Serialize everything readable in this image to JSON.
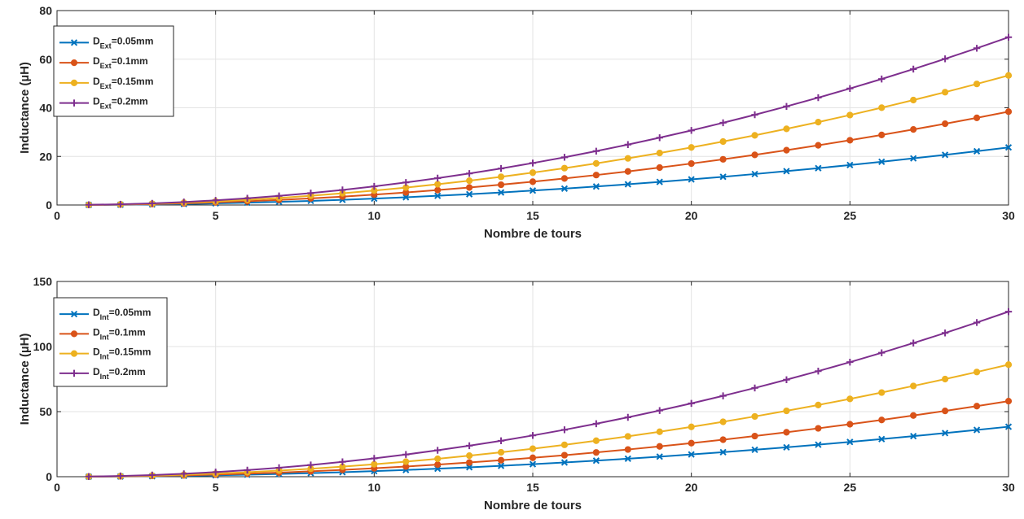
{
  "chart_data": [
    {
      "type": "line",
      "xlabel": "Nombre de tours",
      "ylabel": "Inductance (µH)",
      "xlim": [
        0,
        30
      ],
      "ylim": [
        0,
        80
      ],
      "xticks": [
        "0",
        "5",
        "10",
        "15",
        "20",
        "25",
        "30"
      ],
      "yticks": [
        "0",
        "20",
        "40",
        "60",
        "80"
      ],
      "grid": true,
      "legend_position": "top-left",
      "x": [
        1,
        2,
        3,
        4,
        5,
        6,
        7,
        8,
        9,
        10,
        11,
        12,
        13,
        14,
        15,
        16,
        17,
        18,
        19,
        20,
        21,
        22,
        23,
        24,
        25,
        26,
        27,
        28,
        29,
        30
      ],
      "series": [
        {
          "name": "D",
          "subscript": "Ext",
          "suffix": "=0.05mm",
          "color": "#0072BD",
          "marker": "x",
          "values": [
            0.03,
            0.1,
            0.24,
            0.42,
            0.66,
            0.95,
            1.29,
            1.69,
            2.13,
            2.63,
            3.19,
            3.79,
            4.45,
            5.16,
            5.93,
            6.74,
            7.61,
            8.53,
            9.51,
            10.53,
            11.61,
            12.74,
            13.93,
            15.16,
            16.45,
            17.79,
            19.19,
            20.64,
            22.13,
            23.7
          ]
        },
        {
          "name": "D",
          "subscript": "Ext",
          "suffix": "=0.1mm",
          "color": "#D95319",
          "marker": "circle",
          "values": [
            0.04,
            0.17,
            0.38,
            0.68,
            1.07,
            1.53,
            2.09,
            2.73,
            3.45,
            4.26,
            5.16,
            6.14,
            7.2,
            8.35,
            9.59,
            10.91,
            12.32,
            13.81,
            15.39,
            17.05,
            18.8,
            20.63,
            22.55,
            24.55,
            26.64,
            28.82,
            31.08,
            33.42,
            35.85,
            38.4
          ]
        },
        {
          "name": "D",
          "subscript": "Ext",
          "suffix": "=0.15mm",
          "color": "#EDB120",
          "marker": "circle",
          "values": [
            0.06,
            0.24,
            0.53,
            0.95,
            1.48,
            2.13,
            2.9,
            3.79,
            4.8,
            5.93,
            7.17,
            8.53,
            10.01,
            11.61,
            13.33,
            15.16,
            17.12,
            19.19,
            21.38,
            23.69,
            26.12,
            28.66,
            31.33,
            34.11,
            37.01,
            40.03,
            43.18,
            46.43,
            49.81,
            53.3
          ]
        },
        {
          "name": "D",
          "subscript": "Ext",
          "suffix": "=0.2mm",
          "color": "#7E2F8E",
          "marker": "plus",
          "values": [
            0.08,
            0.31,
            0.69,
            1.23,
            1.92,
            2.76,
            3.76,
            4.91,
            6.21,
            7.67,
            9.28,
            11.05,
            12.96,
            15.03,
            17.26,
            19.64,
            22.17,
            24.85,
            27.69,
            30.68,
            33.83,
            37.12,
            40.57,
            44.17,
            47.93,
            51.84,
            55.91,
            60.13,
            64.5,
            69.03
          ]
        }
      ]
    },
    {
      "type": "line",
      "xlabel": "Nombre de tours",
      "ylabel": "Inductance (µH)",
      "xlim": [
        0,
        30
      ],
      "ylim": [
        0,
        150
      ],
      "xticks": [
        "0",
        "5",
        "10",
        "15",
        "20",
        "25",
        "30"
      ],
      "yticks": [
        "0",
        "50",
        "100",
        "150"
      ],
      "grid": true,
      "legend_position": "top-left",
      "x": [
        1,
        2,
        3,
        4,
        5,
        6,
        7,
        8,
        9,
        10,
        11,
        12,
        13,
        14,
        15,
        16,
        17,
        18,
        19,
        20,
        21,
        22,
        23,
        24,
        25,
        26,
        27,
        28,
        29,
        30
      ],
      "series": [
        {
          "name": "D",
          "subscript": "Int",
          "suffix": "=0.05mm",
          "color": "#0072BD",
          "marker": "x",
          "values": [
            0.04,
            0.17,
            0.38,
            0.68,
            1.07,
            1.54,
            2.09,
            2.73,
            3.46,
            4.27,
            5.17,
            6.15,
            7.22,
            8.37,
            9.61,
            10.93,
            12.34,
            13.84,
            15.42,
            17.09,
            18.84,
            20.68,
            22.6,
            24.61,
            26.7,
            28.88,
            31.15,
            33.5,
            35.94,
            38.4
          ]
        },
        {
          "name": "D",
          "subscript": "Int",
          "suffix": "=0.1mm",
          "color": "#D95319",
          "marker": "circle",
          "values": [
            0.06,
            0.26,
            0.58,
            1.03,
            1.61,
            2.32,
            3.16,
            4.13,
            5.22,
            6.45,
            7.8,
            9.29,
            10.9,
            12.64,
            14.51,
            16.51,
            18.64,
            20.9,
            23.28,
            25.8,
            28.45,
            31.22,
            34.12,
            37.15,
            40.31,
            43.6,
            47.02,
            50.57,
            54.24,
            58.05
          ]
        },
        {
          "name": "D",
          "subscript": "Int",
          "suffix": "=0.15mm",
          "color": "#EDB120",
          "marker": "circle",
          "values": [
            0.1,
            0.38,
            0.86,
            1.53,
            2.39,
            3.44,
            4.69,
            6.12,
            7.75,
            9.56,
            11.57,
            13.77,
            16.16,
            18.75,
            21.52,
            24.48,
            27.64,
            30.99,
            34.53,
            38.26,
            42.18,
            46.29,
            50.6,
            55.1,
            59.78,
            64.66,
            69.73,
            74.99,
            80.44,
            86.1
          ]
        },
        {
          "name": "D",
          "subscript": "Int",
          "suffix": "=0.2mm",
          "color": "#7E2F8E",
          "marker": "plus",
          "values": [
            0.14,
            0.56,
            1.27,
            2.25,
            3.52,
            5.07,
            6.9,
            9.01,
            11.41,
            14.08,
            17.04,
            20.28,
            23.8,
            27.6,
            31.68,
            36.05,
            40.7,
            45.63,
            50.84,
            56.33,
            62.11,
            68.17,
            74.51,
            81.13,
            88.03,
            95.22,
            102.69,
            110.44,
            118.47,
            126.8
          ]
        }
      ]
    }
  ]
}
